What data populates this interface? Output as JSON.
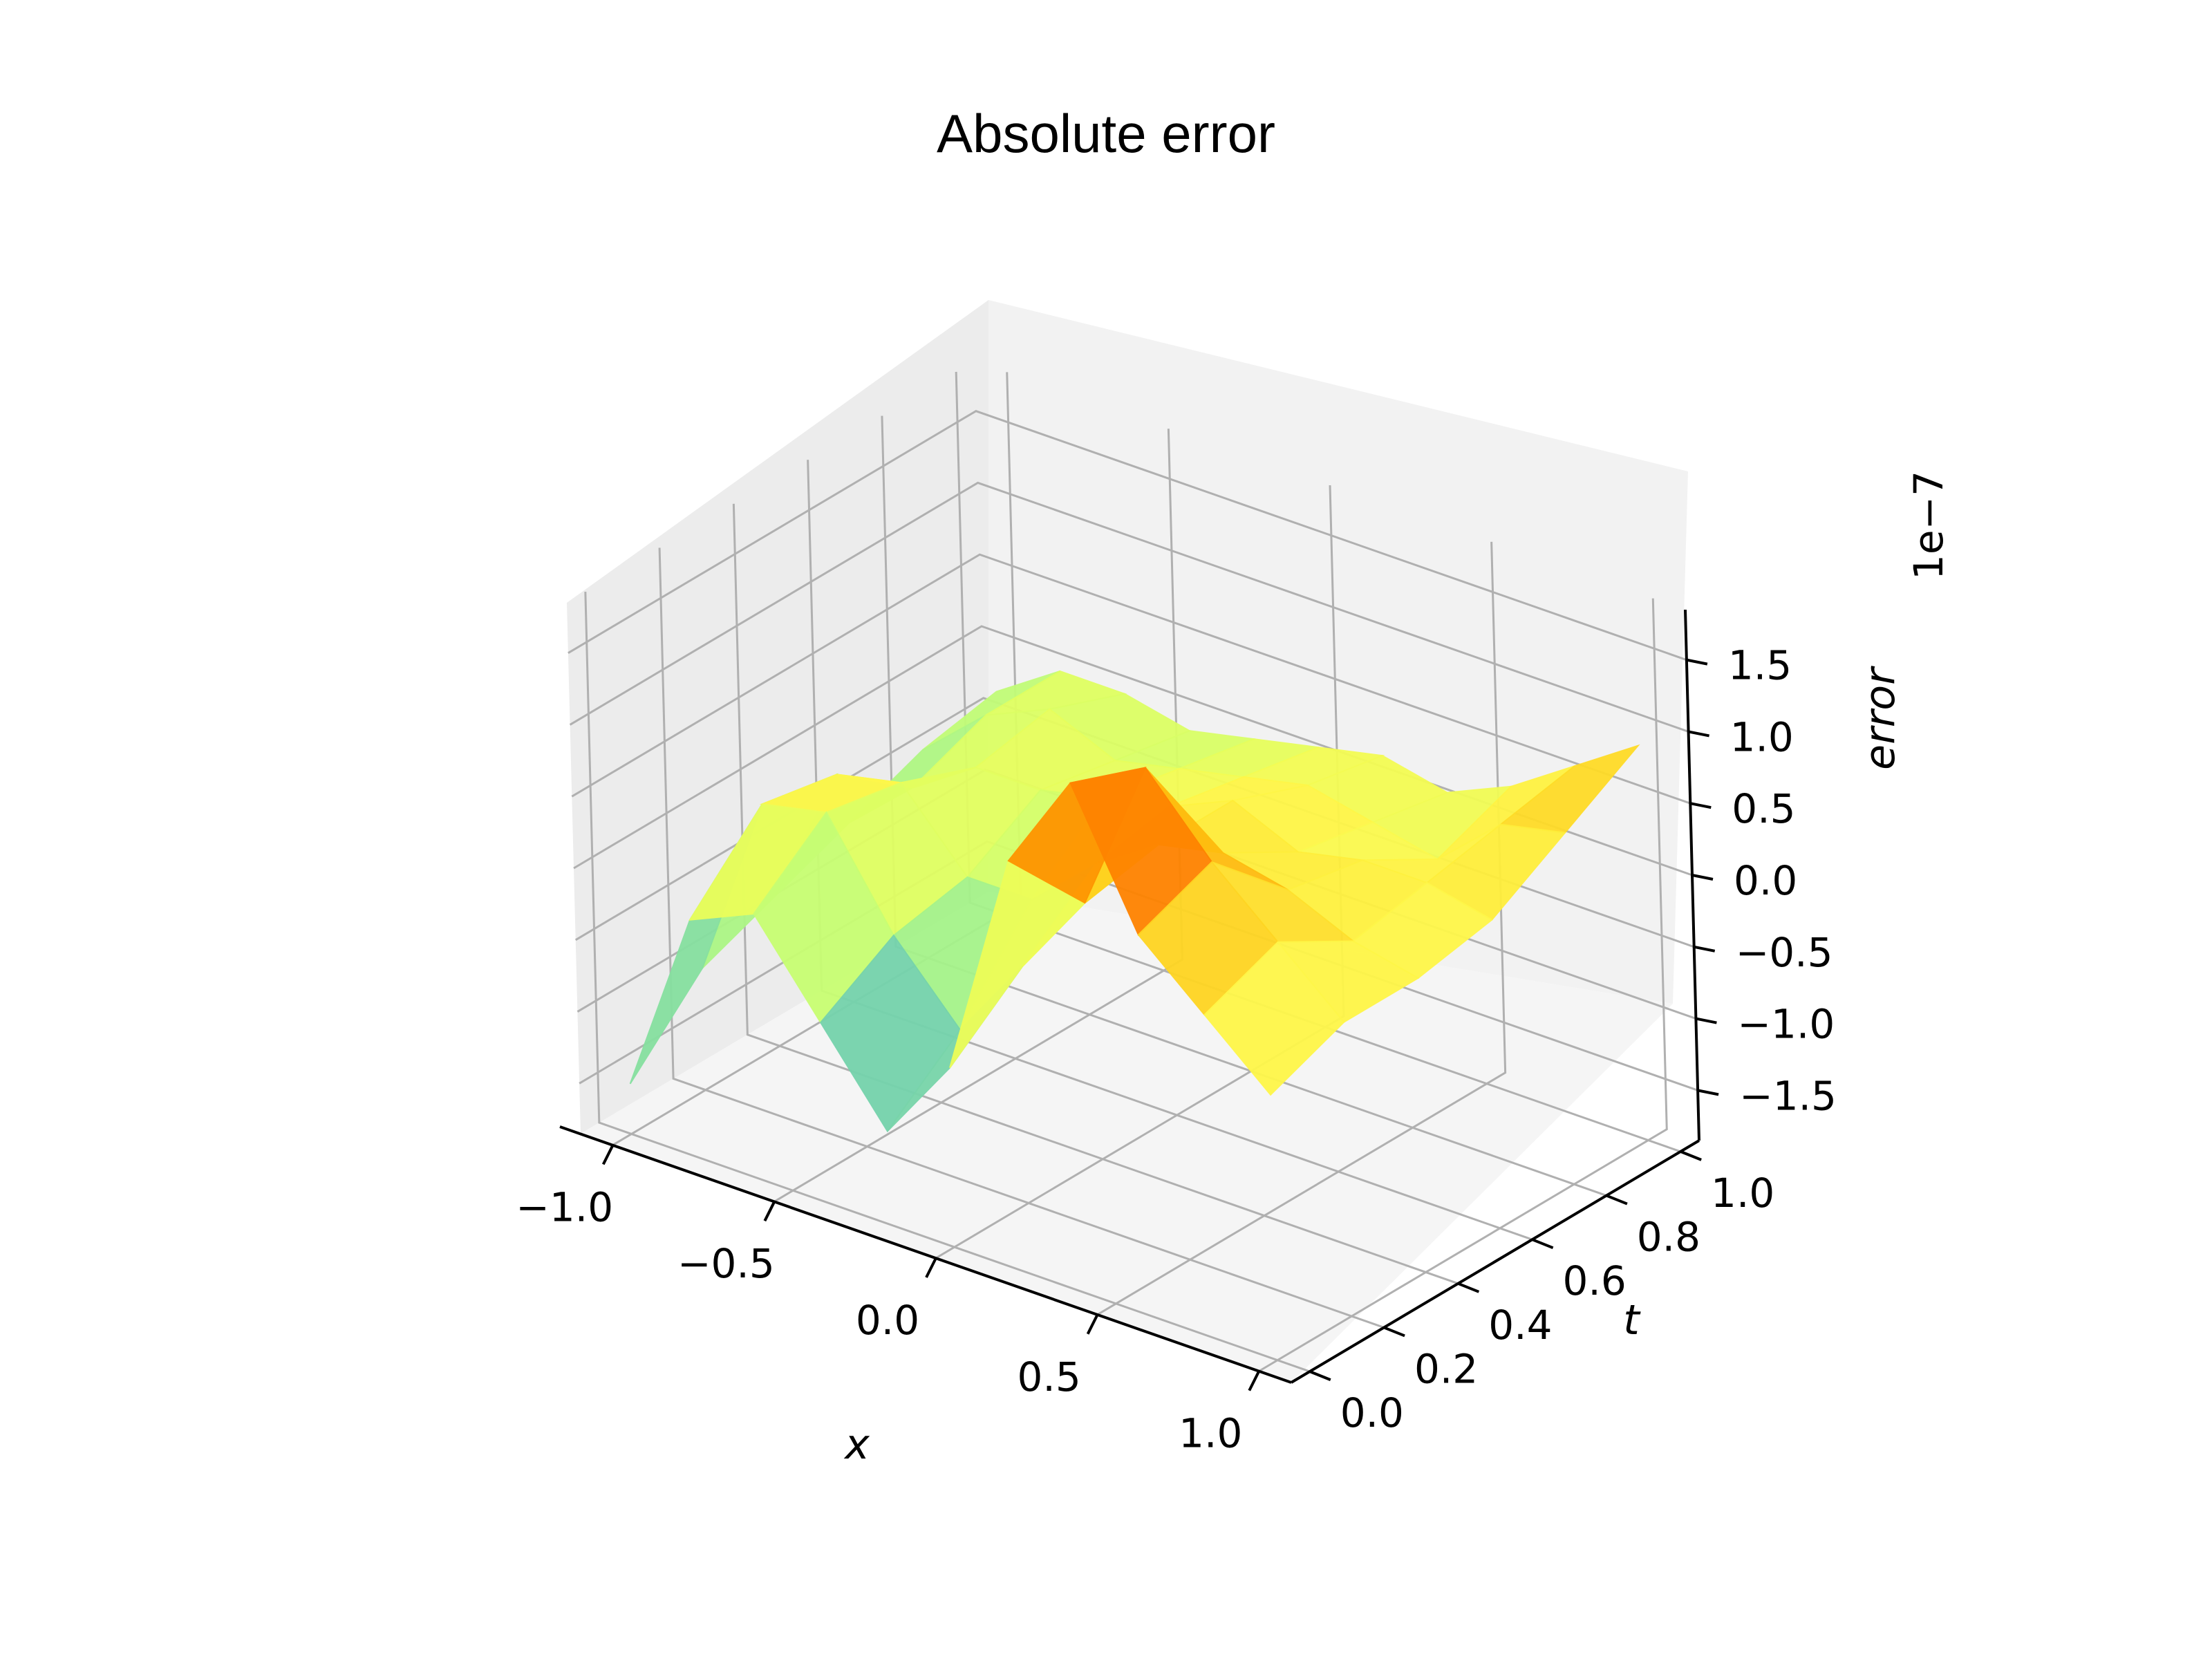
{
  "chart_data": {
    "type": "surface3d",
    "title": "Absolute error",
    "xlabel": "x",
    "ylabel": "t",
    "zlabel": "error",
    "z_offset_label": "1e−7",
    "colormap": "rainbow",
    "xlim": [
      -1.1,
      1.1
    ],
    "ylim": [
      -0.05,
      1.05
    ],
    "zlim": [
      -1.85,
      1.85
    ],
    "x_ticks": [
      -1.0,
      -0.5,
      0.0,
      0.5,
      1.0
    ],
    "y_ticks": [
      0.0,
      0.2,
      0.4,
      0.6,
      0.8,
      1.0
    ],
    "z_ticks": [
      -1.5,
      -1.0,
      -0.5,
      0.0,
      0.5,
      1.0,
      1.5
    ],
    "x_tick_labels": [
      "−1.0",
      "−0.5",
      "0.0",
      "0.5",
      "1.0"
    ],
    "y_tick_labels": [
      "0.0",
      "0.2",
      "0.4",
      "0.6",
      "0.8",
      "1.0"
    ],
    "z_tick_labels": [
      "−1.5",
      "−1.0",
      "−0.5",
      "0.0",
      "0.5",
      "1.0",
      "1.5"
    ],
    "grid": true,
    "x": [
      -1.0,
      -0.8,
      -0.6,
      -0.4,
      -0.2,
      0.0,
      0.2,
      0.4,
      0.6,
      0.8,
      1.0
    ],
    "t": [
      0.0,
      0.2,
      0.4,
      0.6,
      0.8,
      1.0
    ],
    "z": [
      [
        -1.5,
        -0.2,
        0.0,
        -0.6,
        -1.2,
        -0.6,
        1.0,
        1.7,
        0.8,
        0.4,
        0.0
      ],
      [
        -1.0,
        0.3,
        0.4,
        -0.3,
        -0.8,
        -0.2,
        0.4,
        1.5,
        1.0,
        0.6,
        0.2
      ],
      [
        -0.8,
        0.2,
        0.3,
        -0.2,
        -0.2,
        0.2,
        0.5,
        0.6,
        0.5,
        0.3,
        0.2
      ],
      [
        -0.6,
        -0.2,
        0.1,
        0.1,
        0.2,
        0.3,
        0.5,
        0.3,
        0.4,
        0.4,
        0.3
      ],
      [
        -0.4,
        0.0,
        0.2,
        0.0,
        0.1,
        0.2,
        0.3,
        0.2,
        0.1,
        0.5,
        0.6
      ],
      [
        -0.3,
        0.0,
        0.0,
        -0.1,
        0.0,
        0.1,
        0.2,
        0.1,
        0.3,
        0.6,
        0.9
      ]
    ]
  }
}
